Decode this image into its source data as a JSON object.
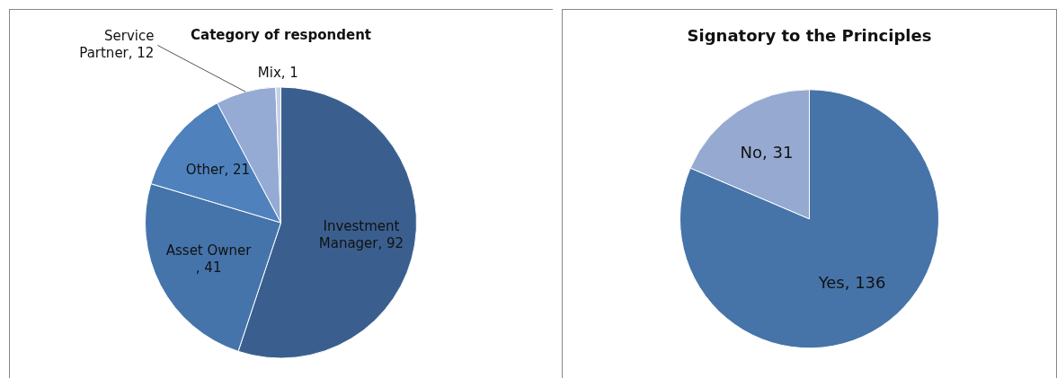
{
  "chart_data": [
    {
      "type": "pie",
      "title": "Category of respondent",
      "categories": [
        "Investment Manager",
        "Asset Owner",
        "Other",
        "Service Partner",
        "Mix"
      ],
      "values": [
        92,
        41,
        21,
        12,
        1
      ],
      "colors": [
        "#3a5f8f",
        "#4574ab",
        "#4f81bd",
        "#95abd3",
        "#c5d0e6"
      ],
      "value_labels": [
        ", 92",
        ", 41",
        ", 21",
        ", 12",
        ", 1"
      ],
      "legend": false
    },
    {
      "type": "pie",
      "title": "Signatory to the Principles",
      "categories": [
        "Yes",
        "No"
      ],
      "values": [
        136,
        31
      ],
      "colors": [
        "#4674a9",
        "#95a9d1"
      ],
      "value_labels": [
        ", 136",
        ", 31"
      ],
      "legend": false
    }
  ]
}
